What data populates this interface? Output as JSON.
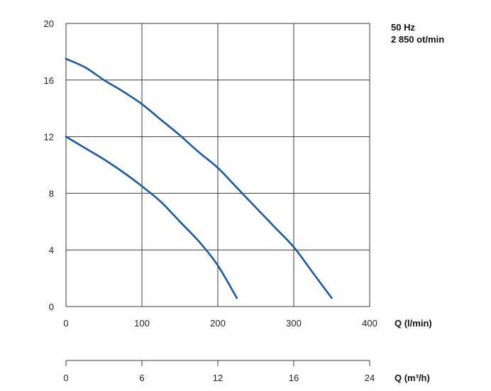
{
  "chart_data": {
    "type": "line",
    "title": "",
    "annotations": [
      "50 Hz",
      "2 850 ot/min"
    ],
    "xlabel": "Q (l/min)",
    "ylabel": "",
    "xlim": [
      0,
      400
    ],
    "ylim": [
      0,
      20
    ],
    "x_ticks": [
      "0",
      "100",
      "200",
      "300",
      "400"
    ],
    "y_ticks": [
      "0",
      "4",
      "8",
      "12",
      "16",
      "20"
    ],
    "grid": true,
    "secondary_x_axis": {
      "label": "Q (m³/h)",
      "ticks": [
        "0",
        "6",
        "12",
        "16",
        "24"
      ]
    },
    "series": [
      {
        "x": [
          0,
          25,
          50,
          75,
          100,
          125,
          150,
          175,
          200,
          225,
          250,
          275,
          300,
          325,
          350
        ],
        "values": [
          17.5,
          16.9,
          16.0,
          15.2,
          14.3,
          13.2,
          12.1,
          10.9,
          9.8,
          8.4,
          7.0,
          5.6,
          4.2,
          2.4,
          0.6
        ]
      },
      {
        "x": [
          0,
          25,
          50,
          75,
          100,
          125,
          150,
          175,
          200,
          225
        ],
        "values": [
          12.0,
          11.2,
          10.4,
          9.5,
          8.5,
          7.4,
          6.0,
          4.6,
          2.9,
          0.6
        ]
      }
    ],
    "colors": {
      "line": "#1b5a9e",
      "grid": "#3a3a3a"
    }
  }
}
